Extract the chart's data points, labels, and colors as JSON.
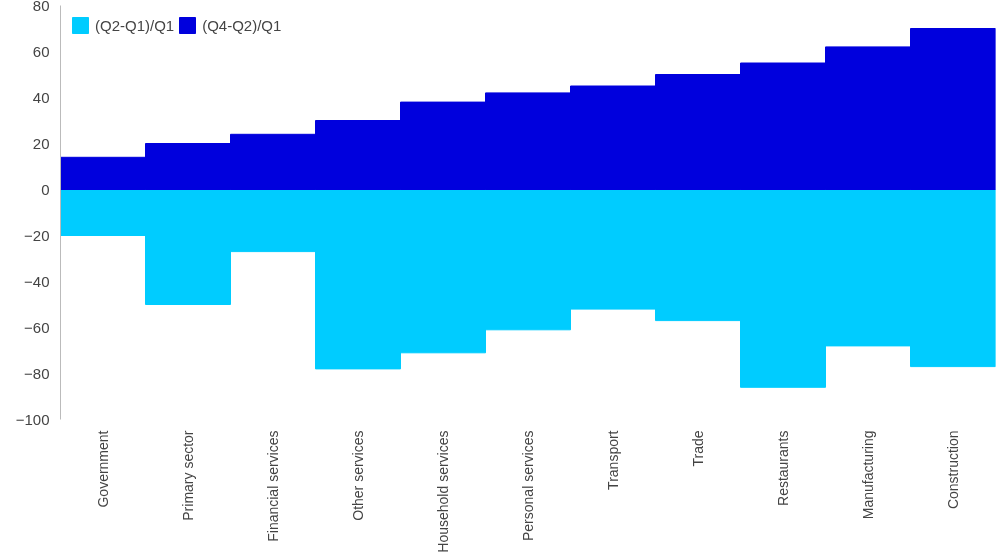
{
  "chart_data": {
    "type": "bar",
    "categories": [
      "Government",
      "Primary sector",
      "Financial services",
      "Other services",
      "Household services",
      "Personal services",
      "Transport",
      "Trade",
      "Restaurants",
      "Manufacturing",
      "Construction"
    ],
    "series": [
      {
        "name": "(Q2-Q1)/Q1",
        "color": "#00ccff",
        "values": [
          -20,
          -50,
          -27,
          -78,
          -71,
          -61,
          -52,
          -57,
          -86,
          -68,
          -77
        ]
      },
      {
        "name": "(Q4-Q2)/Q1",
        "color": "#0000dd",
        "values": [
          14,
          20,
          24,
          30,
          38,
          42,
          45,
          50,
          55,
          62,
          70
        ]
      }
    ],
    "stacked": true,
    "ylim": [
      -100,
      80
    ],
    "yticks": [
      -100,
      -80,
      -60,
      -40,
      -20,
      0,
      20,
      40,
      60,
      80
    ],
    "grid": false,
    "legend": "top left"
  }
}
